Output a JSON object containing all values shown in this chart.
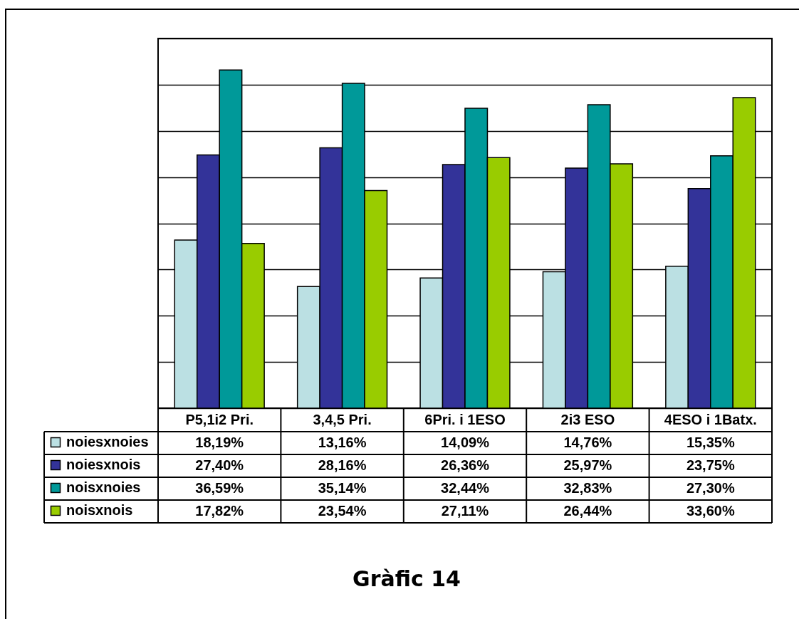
{
  "chart_data": {
    "type": "bar",
    "title": "Gràfic 14",
    "categories": [
      "P5,1i2 Pri.",
      "3,4,5 Pri.",
      "6Pri. i 1ESO",
      "2i3 ESO",
      "4ESO i 1Batx."
    ],
    "series": [
      {
        "name": "noiesxnoies",
        "color": "#bbe0e3",
        "values": [
          18.19,
          13.16,
          14.09,
          14.76,
          15.35
        ],
        "value_labels": [
          "18,19%",
          "13,16%",
          "14,09%",
          "14,76%",
          "15,35%"
        ]
      },
      {
        "name": "noiesxnois",
        "color": "#333399",
        "values": [
          27.4,
          28.16,
          26.36,
          25.97,
          23.75
        ],
        "value_labels": [
          "27,40%",
          "28,16%",
          "26,36%",
          "25,97%",
          "23,75%"
        ]
      },
      {
        "name": "noisxnoies",
        "color": "#009999",
        "values": [
          36.59,
          35.14,
          32.44,
          32.83,
          27.3
        ],
        "value_labels": [
          "36,59%",
          "35,14%",
          "32,44%",
          "32,83%",
          "27,30%"
        ]
      },
      {
        "name": "noisxnois",
        "color": "#99cc00",
        "values": [
          17.82,
          23.54,
          27.11,
          26.44,
          33.6
        ],
        "value_labels": [
          "17,82%",
          "23,54%",
          "27,11%",
          "26,44%",
          "33,60%"
        ]
      }
    ],
    "ylim": [
      0,
      40
    ],
    "yticks": [
      {
        "value": 0,
        "label": null
      },
      {
        "value": 5,
        "label": null
      },
      {
        "value": 10,
        "label": null
      },
      {
        "value": 15,
        "label": null
      },
      {
        "value": 20,
        "label": null
      },
      {
        "value": 25,
        "label": null
      },
      {
        "value": 30,
        "label": null
      },
      {
        "value": 35,
        "label": null
      },
      {
        "value": 40,
        "label": null
      }
    ],
    "grid": "y",
    "legend": "bottom left",
    "tick_labels": "x"
  }
}
